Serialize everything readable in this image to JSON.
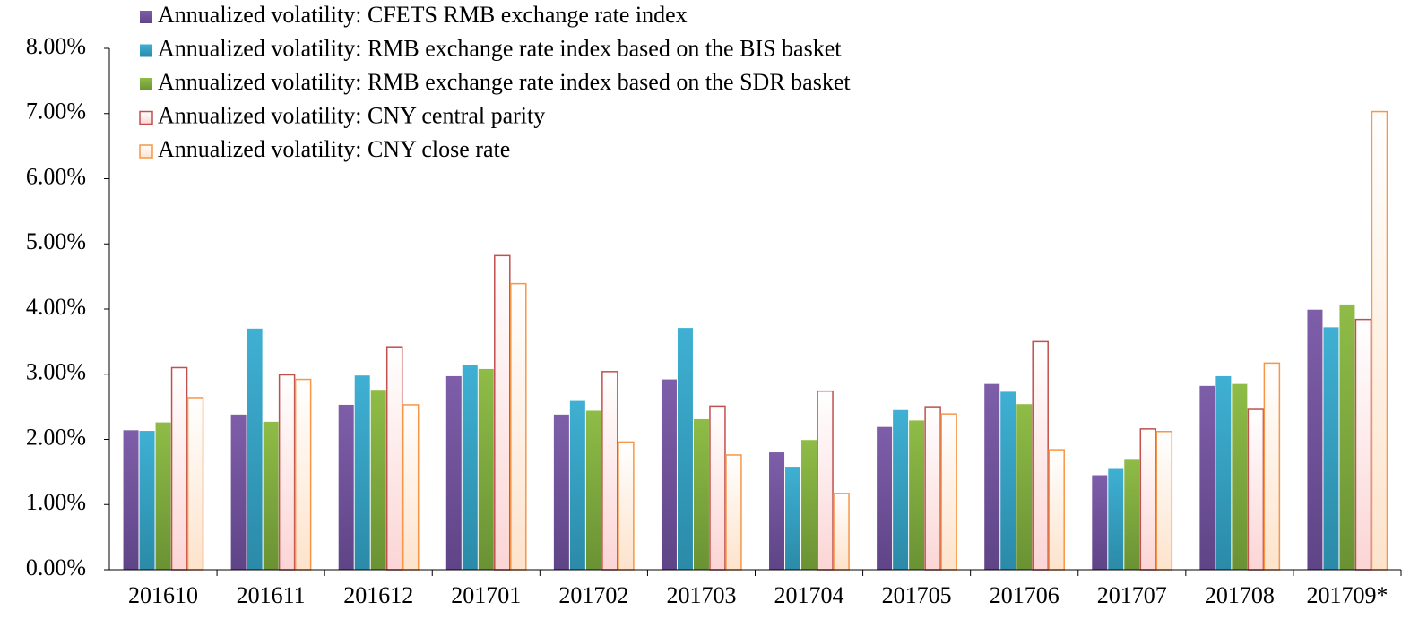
{
  "chart_data": {
    "type": "bar",
    "categories": [
      "201610",
      "201611",
      "201612",
      "201701",
      "201702",
      "201703",
      "201704",
      "201705",
      "201706",
      "201707",
      "201708",
      "201709*"
    ],
    "series": [
      {
        "name": "Annualized volatility: CFETS RMB exchange rate index",
        "color": "#5f4487",
        "fill": "#7e5ea9",
        "values": [
          2.14,
          2.38,
          2.53,
          2.97,
          2.38,
          2.92,
          1.8,
          2.19,
          2.85,
          1.45,
          2.82,
          3.99
        ]
      },
      {
        "name": "Annualized volatility: RMB exchange rate index based on the BIS basket",
        "color": "#2b8aa8",
        "fill": "#3fb0d3",
        "values": [
          2.13,
          3.7,
          2.98,
          3.14,
          2.59,
          3.71,
          1.58,
          2.45,
          2.73,
          1.56,
          2.97,
          3.72
        ]
      },
      {
        "name": "Annualized volatility: RMB exchange rate index based on the SDR basket",
        "color": "#6a9234",
        "fill": "#8fbc47",
        "values": [
          2.26,
          2.27,
          2.76,
          3.08,
          2.44,
          2.31,
          1.99,
          2.29,
          2.54,
          1.7,
          2.85,
          4.07
        ]
      },
      {
        "name": "Annualized volatility: CNY central parity",
        "color": "#c0504d",
        "fill": "#fcd5d5",
        "values": [
          3.1,
          2.99,
          3.42,
          4.82,
          3.04,
          2.51,
          2.74,
          2.5,
          3.5,
          2.16,
          2.46,
          3.84
        ]
      },
      {
        "name": "Annualized volatility: CNY close rate",
        "color": "#f79646",
        "fill": "#fde3cc",
        "values": [
          2.64,
          2.92,
          2.53,
          4.39,
          1.96,
          1.76,
          1.17,
          2.39,
          1.84,
          2.12,
          3.17,
          7.03
        ]
      }
    ],
    "ylim": [
      0,
      8
    ],
    "yticks": [
      {
        "value": 0,
        "label": "0.00%"
      },
      {
        "value": 1,
        "label": "1.00%"
      },
      {
        "value": 2,
        "label": "2.00%"
      },
      {
        "value": 3,
        "label": "3.00%"
      },
      {
        "value": 4,
        "label": "4.00%"
      },
      {
        "value": 5,
        "label": "5.00%"
      },
      {
        "value": 6,
        "label": "6.00%"
      },
      {
        "value": 7,
        "label": "7.00%"
      },
      {
        "value": 8,
        "label": "8.00%"
      }
    ],
    "legend": "top-left",
    "grid": false
  }
}
